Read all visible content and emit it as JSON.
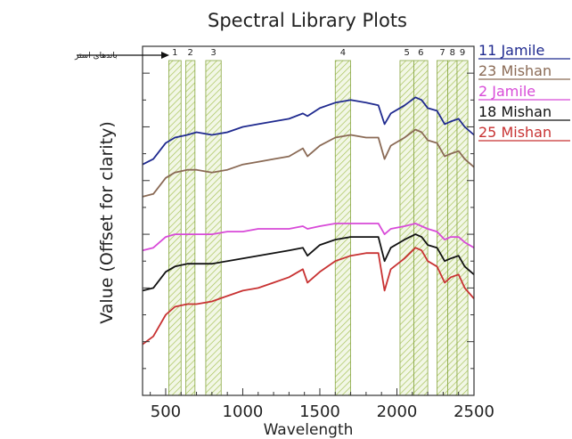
{
  "chart_data": {
    "type": "line",
    "title": "Spectral Library Plots",
    "xlabel": "Wavelength",
    "ylabel": "Value (Offset for clarity)",
    "xlim": [
      350,
      2500
    ],
    "xticks": [
      "500",
      "1000",
      "1500",
      "2000",
      "2500"
    ],
    "y_ticks_labeled": false,
    "annotation": "باندهای استر",
    "bands": [
      {
        "label": "1",
        "range": [
          520,
          600
        ]
      },
      {
        "label": "2",
        "range": [
          630,
          690
        ]
      },
      {
        "label": "3",
        "range": [
          760,
          860
        ]
      },
      {
        "label": "4",
        "range": [
          1600,
          1700
        ]
      },
      {
        "label": "5",
        "range": [
          2020,
          2110
        ]
      },
      {
        "label": "6",
        "range": [
          2110,
          2200
        ]
      },
      {
        "label": "7",
        "range": [
          2260,
          2330
        ]
      },
      {
        "label": "8",
        "range": [
          2330,
          2390
        ]
      },
      {
        "label": "9",
        "range": [
          2390,
          2460
        ]
      }
    ],
    "series": [
      {
        "name": "11 Jamile",
        "color": "#1f2a8f",
        "points": [
          [
            350,
            8.6
          ],
          [
            420,
            8.8
          ],
          [
            500,
            9.4
          ],
          [
            560,
            9.6
          ],
          [
            640,
            9.7
          ],
          [
            700,
            9.8
          ],
          [
            800,
            9.7
          ],
          [
            900,
            9.8
          ],
          [
            1000,
            10.0
          ],
          [
            1100,
            10.1
          ],
          [
            1200,
            10.2
          ],
          [
            1300,
            10.3
          ],
          [
            1390,
            10.5
          ],
          [
            1420,
            10.4
          ],
          [
            1500,
            10.7
          ],
          [
            1600,
            10.9
          ],
          [
            1700,
            11.0
          ],
          [
            1800,
            10.9
          ],
          [
            1880,
            10.8
          ],
          [
            1920,
            10.1
          ],
          [
            1960,
            10.5
          ],
          [
            2050,
            10.8
          ],
          [
            2120,
            11.1
          ],
          [
            2160,
            11.0
          ],
          [
            2200,
            10.7
          ],
          [
            2260,
            10.6
          ],
          [
            2310,
            10.1
          ],
          [
            2350,
            10.2
          ],
          [
            2400,
            10.3
          ],
          [
            2440,
            10.0
          ],
          [
            2500,
            9.7
          ]
        ]
      },
      {
        "name": "23 Mishan",
        "color": "#8a6a55",
        "points": [
          [
            350,
            7.4
          ],
          [
            420,
            7.5
          ],
          [
            500,
            8.1
          ],
          [
            560,
            8.3
          ],
          [
            640,
            8.4
          ],
          [
            700,
            8.4
          ],
          [
            800,
            8.3
          ],
          [
            900,
            8.4
          ],
          [
            1000,
            8.6
          ],
          [
            1100,
            8.7
          ],
          [
            1200,
            8.8
          ],
          [
            1300,
            8.9
          ],
          [
            1390,
            9.2
          ],
          [
            1420,
            8.9
          ],
          [
            1500,
            9.3
          ],
          [
            1600,
            9.6
          ],
          [
            1700,
            9.7
          ],
          [
            1800,
            9.6
          ],
          [
            1880,
            9.6
          ],
          [
            1920,
            8.8
          ],
          [
            1960,
            9.3
          ],
          [
            2050,
            9.6
          ],
          [
            2120,
            9.9
          ],
          [
            2160,
            9.8
          ],
          [
            2200,
            9.5
          ],
          [
            2260,
            9.4
          ],
          [
            2310,
            8.9
          ],
          [
            2350,
            9.0
          ],
          [
            2400,
            9.1
          ],
          [
            2440,
            8.8
          ],
          [
            2500,
            8.5
          ]
        ]
      },
      {
        "name": "2 Jamile",
        "color": "#d84ad8",
        "points": [
          [
            350,
            5.4
          ],
          [
            420,
            5.5
          ],
          [
            500,
            5.9
          ],
          [
            560,
            6.0
          ],
          [
            640,
            6.0
          ],
          [
            700,
            6.0
          ],
          [
            800,
            6.0
          ],
          [
            900,
            6.1
          ],
          [
            1000,
            6.1
          ],
          [
            1100,
            6.2
          ],
          [
            1200,
            6.2
          ],
          [
            1300,
            6.2
          ],
          [
            1390,
            6.3
          ],
          [
            1420,
            6.2
          ],
          [
            1500,
            6.3
          ],
          [
            1600,
            6.4
          ],
          [
            1700,
            6.4
          ],
          [
            1800,
            6.4
          ],
          [
            1880,
            6.4
          ],
          [
            1920,
            6.0
          ],
          [
            1960,
            6.2
          ],
          [
            2050,
            6.3
          ],
          [
            2120,
            6.4
          ],
          [
            2160,
            6.3
          ],
          [
            2200,
            6.2
          ],
          [
            2260,
            6.1
          ],
          [
            2310,
            5.8
          ],
          [
            2350,
            5.9
          ],
          [
            2400,
            5.9
          ],
          [
            2440,
            5.7
          ],
          [
            2500,
            5.5
          ]
        ]
      },
      {
        "name": "18 Mishan",
        "color": "#111111",
        "points": [
          [
            350,
            3.9
          ],
          [
            420,
            4.0
          ],
          [
            500,
            4.6
          ],
          [
            560,
            4.8
          ],
          [
            640,
            4.9
          ],
          [
            700,
            4.9
          ],
          [
            800,
            4.9
          ],
          [
            900,
            5.0
          ],
          [
            1000,
            5.1
          ],
          [
            1100,
            5.2
          ],
          [
            1200,
            5.3
          ],
          [
            1300,
            5.4
          ],
          [
            1390,
            5.5
          ],
          [
            1420,
            5.2
          ],
          [
            1500,
            5.6
          ],
          [
            1600,
            5.8
          ],
          [
            1700,
            5.9
          ],
          [
            1800,
            5.9
          ],
          [
            1880,
            5.9
          ],
          [
            1920,
            5.0
          ],
          [
            1960,
            5.5
          ],
          [
            2050,
            5.8
          ],
          [
            2120,
            6.0
          ],
          [
            2160,
            5.9
          ],
          [
            2200,
            5.6
          ],
          [
            2260,
            5.5
          ],
          [
            2310,
            5.0
          ],
          [
            2350,
            5.1
          ],
          [
            2400,
            5.2
          ],
          [
            2440,
            4.8
          ],
          [
            2500,
            4.5
          ]
        ]
      },
      {
        "name": "25 Mishan",
        "color": "#c83232",
        "points": [
          [
            350,
            1.9
          ],
          [
            420,
            2.2
          ],
          [
            500,
            3.0
          ],
          [
            560,
            3.3
          ],
          [
            640,
            3.4
          ],
          [
            700,
            3.4
          ],
          [
            800,
            3.5
          ],
          [
            900,
            3.7
          ],
          [
            1000,
            3.9
          ],
          [
            1100,
            4.0
          ],
          [
            1200,
            4.2
          ],
          [
            1300,
            4.4
          ],
          [
            1390,
            4.7
          ],
          [
            1420,
            4.2
          ],
          [
            1500,
            4.6
          ],
          [
            1600,
            5.0
          ],
          [
            1700,
            5.2
          ],
          [
            1800,
            5.3
          ],
          [
            1880,
            5.3
          ],
          [
            1920,
            3.9
          ],
          [
            1960,
            4.7
          ],
          [
            2050,
            5.1
          ],
          [
            2120,
            5.5
          ],
          [
            2160,
            5.4
          ],
          [
            2200,
            5.0
          ],
          [
            2260,
            4.8
          ],
          [
            2310,
            4.2
          ],
          [
            2350,
            4.4
          ],
          [
            2400,
            4.5
          ],
          [
            2440,
            4.0
          ],
          [
            2500,
            3.6
          ]
        ]
      }
    ]
  }
}
